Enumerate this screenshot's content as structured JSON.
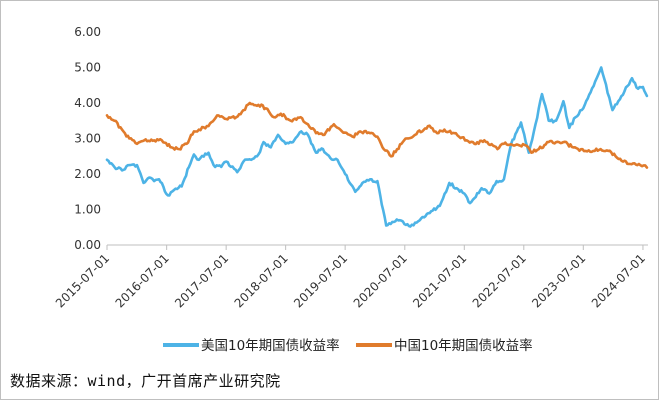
{
  "chart_data": {
    "type": "line",
    "title": "",
    "xlabel": "",
    "ylabel": "",
    "ylim": [
      0,
      6
    ],
    "yticks": [
      "6.00",
      "5.00",
      "4.00",
      "3.00",
      "2.00",
      "1.00",
      "0.00"
    ],
    "x_tick_labels": [
      "2015-07-01",
      "2016-07-01",
      "2017-07-01",
      "2018-07-01",
      "2019-07-01",
      "2020-07-01",
      "2021-07-01",
      "2022-07-01",
      "2023-07-01",
      "2024-07-01"
    ],
    "x_range": [
      "2015-07-01",
      "2024-08-01"
    ],
    "grid": false,
    "legend_position": "bottom",
    "series": [
      {
        "name": "美国10年期国债收益率",
        "color": "#4db3e6",
        "points": [
          [
            "2015-07-01",
            2.4
          ],
          [
            "2015-08-15",
            2.2
          ],
          [
            "2015-10-01",
            2.1
          ],
          [
            "2015-11-15",
            2.25
          ],
          [
            "2016-01-01",
            2.25
          ],
          [
            "2016-02-10",
            1.75
          ],
          [
            "2016-03-15",
            1.9
          ],
          [
            "2016-04-15",
            1.8
          ],
          [
            "2016-05-15",
            1.85
          ],
          [
            "2016-07-08",
            1.4
          ],
          [
            "2016-08-15",
            1.55
          ],
          [
            "2016-10-01",
            1.65
          ],
          [
            "2016-11-15",
            2.2
          ],
          [
            "2016-12-15",
            2.55
          ],
          [
            "2017-01-15",
            2.4
          ],
          [
            "2017-03-15",
            2.6
          ],
          [
            "2017-04-15",
            2.25
          ],
          [
            "2017-06-01",
            2.2
          ],
          [
            "2017-07-01",
            2.35
          ],
          [
            "2017-09-07",
            2.05
          ],
          [
            "2017-10-15",
            2.35
          ],
          [
            "2017-12-01",
            2.4
          ],
          [
            "2018-01-15",
            2.55
          ],
          [
            "2018-02-15",
            2.9
          ],
          [
            "2018-04-01",
            2.75
          ],
          [
            "2018-05-15",
            3.1
          ],
          [
            "2018-07-01",
            2.85
          ],
          [
            "2018-08-15",
            2.9
          ],
          [
            "2018-10-05",
            3.2
          ],
          [
            "2018-11-15",
            3.1
          ],
          [
            "2019-01-03",
            2.6
          ],
          [
            "2019-02-15",
            2.7
          ],
          [
            "2019-04-01",
            2.45
          ],
          [
            "2019-05-15",
            2.4
          ],
          [
            "2019-07-01",
            2.0
          ],
          [
            "2019-09-01",
            1.5
          ],
          [
            "2019-10-15",
            1.75
          ],
          [
            "2019-12-01",
            1.85
          ],
          [
            "2020-01-15",
            1.8
          ],
          [
            "2020-03-09",
            0.55
          ],
          [
            "2020-04-15",
            0.65
          ],
          [
            "2020-06-01",
            0.7
          ],
          [
            "2020-08-04",
            0.52
          ],
          [
            "2020-10-01",
            0.7
          ],
          [
            "2020-12-01",
            0.9
          ],
          [
            "2021-02-01",
            1.1
          ],
          [
            "2021-03-31",
            1.75
          ],
          [
            "2021-05-15",
            1.6
          ],
          [
            "2021-07-01",
            1.45
          ],
          [
            "2021-08-05",
            1.18
          ],
          [
            "2021-10-15",
            1.6
          ],
          [
            "2021-12-01",
            1.45
          ],
          [
            "2022-01-15",
            1.8
          ],
          [
            "2022-03-01",
            1.85
          ],
          [
            "2022-04-15",
            2.85
          ],
          [
            "2022-06-14",
            3.45
          ],
          [
            "2022-08-01",
            2.6
          ],
          [
            "2022-09-01",
            3.2
          ],
          [
            "2022-10-21",
            4.25
          ],
          [
            "2022-12-01",
            3.5
          ],
          [
            "2023-01-15",
            3.5
          ],
          [
            "2023-03-01",
            4.05
          ],
          [
            "2023-04-06",
            3.3
          ],
          [
            "2023-05-15",
            3.6
          ],
          [
            "2023-07-01",
            3.85
          ],
          [
            "2023-08-15",
            4.3
          ],
          [
            "2023-10-19",
            5.0
          ],
          [
            "2023-12-27",
            3.8
          ],
          [
            "2024-02-01",
            4.05
          ],
          [
            "2024-04-25",
            4.7
          ],
          [
            "2024-06-01",
            4.4
          ],
          [
            "2024-07-01",
            4.45
          ],
          [
            "2024-07-25",
            4.2
          ]
        ]
      },
      {
        "name": "中国10年期国债收益率",
        "color": "#e07b2c",
        "points": [
          [
            "2015-07-01",
            3.65
          ],
          [
            "2015-08-15",
            3.5
          ],
          [
            "2015-10-01",
            3.25
          ],
          [
            "2015-11-15",
            3.0
          ],
          [
            "2016-01-01",
            2.85
          ],
          [
            "2016-02-15",
            2.95
          ],
          [
            "2016-04-15",
            2.95
          ],
          [
            "2016-06-01",
            2.95
          ],
          [
            "2016-08-01",
            2.75
          ],
          [
            "2016-09-15",
            2.7
          ],
          [
            "2016-11-01",
            2.85
          ],
          [
            "2016-12-15",
            3.2
          ],
          [
            "2017-01-15",
            3.25
          ],
          [
            "2017-03-15",
            3.35
          ],
          [
            "2017-05-15",
            3.65
          ],
          [
            "2017-07-01",
            3.55
          ],
          [
            "2017-09-01",
            3.6
          ],
          [
            "2017-10-15",
            3.8
          ],
          [
            "2017-11-23",
            4.0
          ],
          [
            "2018-01-15",
            3.95
          ],
          [
            "2018-03-01",
            3.85
          ],
          [
            "2018-04-20",
            3.6
          ],
          [
            "2018-06-01",
            3.7
          ],
          [
            "2018-08-01",
            3.5
          ],
          [
            "2018-10-01",
            3.6
          ],
          [
            "2018-11-15",
            3.4
          ],
          [
            "2019-01-03",
            3.15
          ],
          [
            "2019-02-15",
            3.1
          ],
          [
            "2019-04-23",
            3.4
          ],
          [
            "2019-06-01",
            3.25
          ],
          [
            "2019-08-15",
            3.05
          ],
          [
            "2019-10-01",
            3.2
          ],
          [
            "2019-12-01",
            3.15
          ],
          [
            "2020-01-15",
            3.05
          ],
          [
            "2020-02-15",
            2.75
          ],
          [
            "2020-04-08",
            2.5
          ],
          [
            "2020-05-15",
            2.7
          ],
          [
            "2020-07-06",
            3.0
          ],
          [
            "2020-09-01",
            3.1
          ],
          [
            "2020-11-20",
            3.35
          ],
          [
            "2021-01-15",
            3.15
          ],
          [
            "2021-03-01",
            3.25
          ],
          [
            "2021-05-01",
            3.15
          ],
          [
            "2021-07-15",
            2.95
          ],
          [
            "2021-09-01",
            2.85
          ],
          [
            "2021-11-01",
            2.95
          ],
          [
            "2022-01-20",
            2.7
          ],
          [
            "2022-03-01",
            2.85
          ],
          [
            "2022-05-01",
            2.8
          ],
          [
            "2022-07-15",
            2.8
          ],
          [
            "2022-08-16",
            2.6
          ],
          [
            "2022-10-01",
            2.7
          ],
          [
            "2022-11-30",
            2.9
          ],
          [
            "2023-01-15",
            2.9
          ],
          [
            "2023-03-01",
            2.9
          ],
          [
            "2023-05-01",
            2.75
          ],
          [
            "2023-07-15",
            2.65
          ],
          [
            "2023-09-01",
            2.65
          ],
          [
            "2023-10-15",
            2.7
          ],
          [
            "2023-12-01",
            2.65
          ],
          [
            "2024-01-15",
            2.5
          ],
          [
            "2024-03-01",
            2.35
          ],
          [
            "2024-05-01",
            2.3
          ],
          [
            "2024-06-15",
            2.25
          ],
          [
            "2024-07-25",
            2.18
          ]
        ]
      }
    ]
  },
  "source_text": "数据来源：wind，广开首席产业研究院"
}
